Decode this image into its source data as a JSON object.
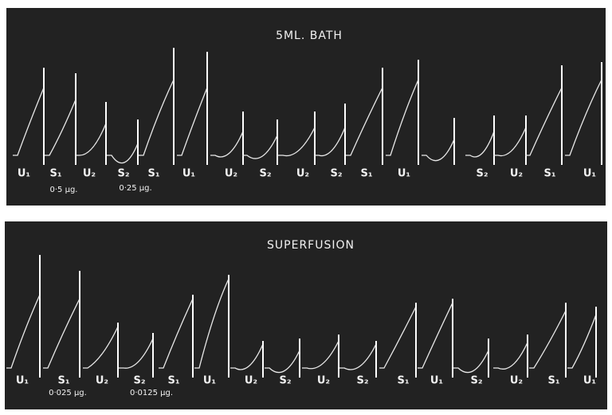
{
  "panels": [
    {
      "title": "5ML. BATH",
      "labels": [
        "U₁",
        "S₁",
        "U₂",
        "S₂",
        "S₁",
        "U₁",
        "U₂",
        "S₂",
        "U₂",
        "S₂",
        "S₁",
        "U₁",
        "S₂",
        "U₂",
        "S₁",
        "U₁"
      ],
      "doses": [
        "0·5 µg.",
        "0·25 µg."
      ]
    },
    {
      "title": "SUPERFUSION",
      "labels": [
        "U₁",
        "S₁",
        "U₂",
        "S₂",
        "S₁",
        "U₁",
        "U₂",
        "S₂",
        "U₂",
        "S₂",
        "S₁",
        "U₁",
        "S₂",
        "U₂",
        "S₁",
        "U₁"
      ],
      "doses": [
        "0·025 µg.",
        "0·0125 µg."
      ]
    }
  ]
}
